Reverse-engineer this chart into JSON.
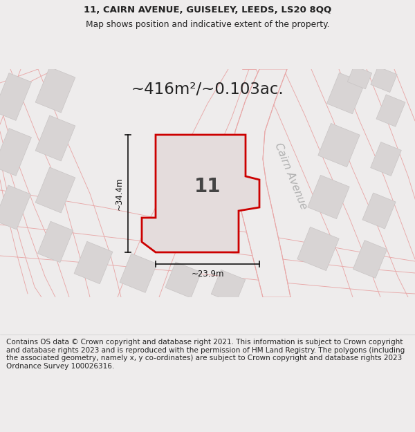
{
  "title_line1": "11, CAIRN AVENUE, GUISELEY, LEEDS, LS20 8QQ",
  "title_line2": "Map shows position and indicative extent of the property.",
  "area_text": "~416m²/~0.103ac.",
  "label_number": "11",
  "label_street": "Cairn Avenue",
  "dim_height": "~34.4m",
  "dim_width": "~23.9m",
  "footer_text": "Contains OS data © Crown copyright and database right 2021. This information is subject to Crown copyright and database rights 2023 and is reproduced with the permission of HM Land Registry. The polygons (including the associated geometry, namely x, y co-ordinates) are subject to Crown copyright and database rights 2023 Ordnance Survey 100026316.",
  "bg_color": "#eeecec",
  "footer_bg": "#ffffff",
  "road_line_color": "#e8a8a8",
  "highlight_fill": "#e4dcdc",
  "highlight_stroke": "#cc0000",
  "building_fill": "#d8d4d4",
  "building_stroke": "#c8c4c4",
  "text_dark": "#222222",
  "text_grey": "#aaaaaa",
  "dim_color": "#111111",
  "title_fontsize": 9.5,
  "subtitle_fontsize": 8.8,
  "area_fontsize": 16.5,
  "label_fontsize": 20,
  "street_fontsize": 11,
  "footer_fontsize": 7.5,
  "dim_fontsize": 8.5
}
